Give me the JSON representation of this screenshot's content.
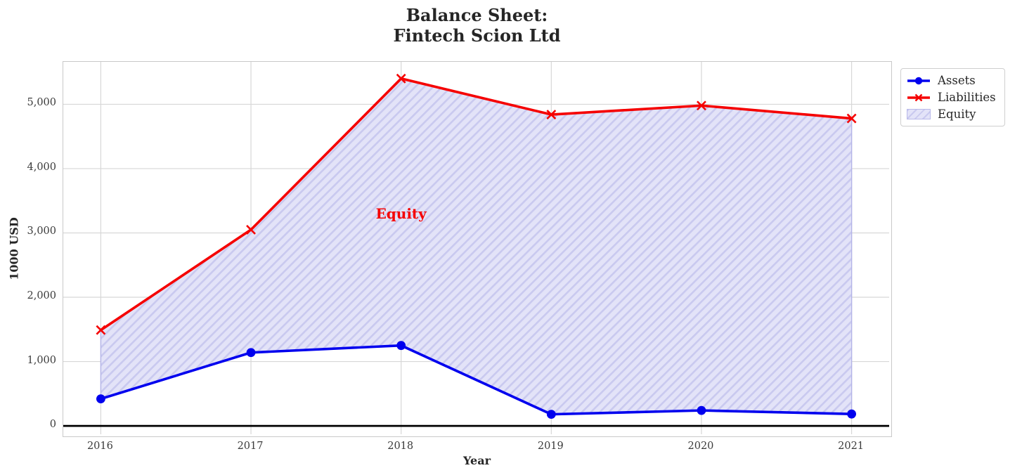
{
  "title": "Balance Sheet:\nFintech Scion Ltd",
  "chart_data": {
    "type": "line",
    "title": "Balance Sheet:\nFintech Scion Ltd",
    "xlabel": "Year",
    "ylabel": "1000 USD",
    "x": [
      2016,
      2017,
      2018,
      2019,
      2020,
      2021
    ],
    "series": [
      {
        "name": "Assets",
        "color": "#0000ee",
        "marker": "circle",
        "values": [
          420,
          1140,
          1250,
          180,
          240,
          185
        ]
      },
      {
        "name": "Liabilities",
        "color": "#f50000",
        "marker": "x",
        "values": [
          1490,
          3050,
          5400,
          4840,
          4980,
          4780
        ]
      }
    ],
    "fill_between": {
      "name": "Equity",
      "upper": "Liabilities",
      "lower": "Assets",
      "hatch": "//",
      "fill_color": "#e3e3f8",
      "hatch_color": "#c9c9ef",
      "edge_color": "#b4b4e8"
    },
    "annotation": {
      "text": "Equity",
      "x": 2018,
      "y": 3300,
      "color": "#f50000"
    },
    "xticks": [
      2016,
      2017,
      2018,
      2019,
      2020,
      2021
    ],
    "xtick_labels": [
      "2016",
      "2017",
      "2018",
      "2019",
      "2020",
      "2021"
    ],
    "yticks": [
      0,
      1000,
      2000,
      3000,
      4000,
      5000
    ],
    "ytick_labels": [
      "0",
      "1,000",
      "2,000",
      "3,000",
      "4,000",
      "5,000"
    ],
    "xlim": [
      2015.75,
      2021.25
    ],
    "ylim": [
      -130,
      5660
    ],
    "grid": true,
    "grid_color": "#d7d7d7",
    "zero_line": true,
    "zero_line_color": "#000000",
    "legend_position": "outside-top-right",
    "legend_entries": [
      "Assets",
      "Liabilities",
      "Equity"
    ]
  }
}
